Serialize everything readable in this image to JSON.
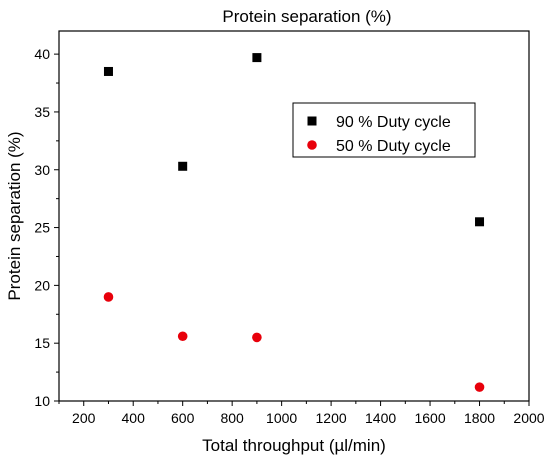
{
  "chart_data": {
    "type": "scatter",
    "title": "Protein separation (%)",
    "xlabel": "Total throughput (µl/min)",
    "ylabel": "Protein separation (%)",
    "xlim": [
      100,
      2000
    ],
    "ylim": [
      10,
      42
    ],
    "xticks": [
      200,
      400,
      600,
      800,
      1000,
      1200,
      1400,
      1600,
      1800,
      2000
    ],
    "yticks": [
      10,
      15,
      20,
      25,
      30,
      35,
      40
    ],
    "grid": false,
    "legend_position": "top-right",
    "series": [
      {
        "name": "90 % Duty cycle",
        "marker": "square",
        "color": "#000000",
        "x": [
          300,
          600,
          900,
          1800
        ],
        "y": [
          38.5,
          30.3,
          39.7,
          25.5
        ]
      },
      {
        "name": "50 % Duty cycle",
        "marker": "circle",
        "color": "#e8000b",
        "x": [
          300,
          600,
          900,
          1800
        ],
        "y": [
          19.0,
          15.6,
          15.5,
          11.2
        ]
      }
    ]
  }
}
